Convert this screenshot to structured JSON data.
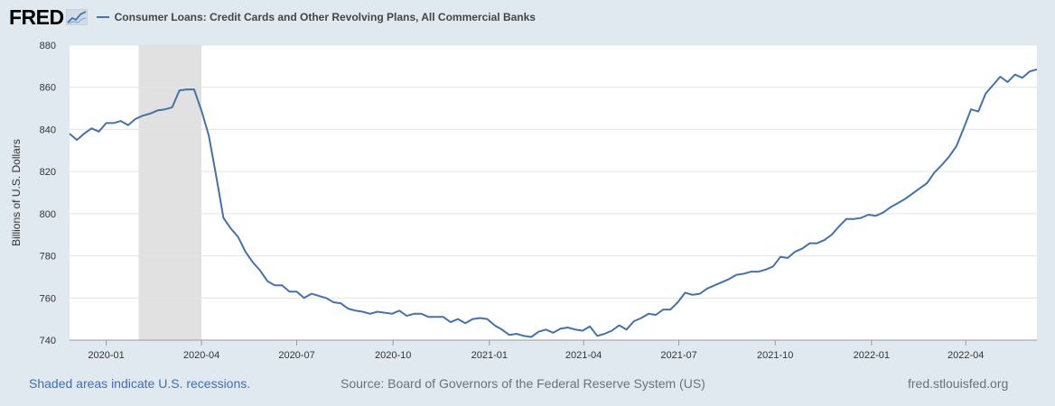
{
  "brand": {
    "logo_text": "FRED",
    "logo_icon": "fred-chart-icon"
  },
  "footer": {
    "recession_note": "Shaded areas indicate U.S. recessions.",
    "source": "Source: Board of Governors of the Federal Reserve System (US)",
    "url": "fred.stlouisfed.org"
  },
  "colors": {
    "line": "#4572a7",
    "recession": "#e1e1e1",
    "background": "#e1e9f0",
    "plot": "#ffffff",
    "grid": "#e4e4e4"
  },
  "chart_data": {
    "type": "line",
    "title": "",
    "xlabel": "",
    "ylabel": "Billions of U.S. Dollars",
    "ylim": [
      740,
      880
    ],
    "xlim": [
      "2019-11-27",
      "2022-06-08"
    ],
    "yticks": [
      740,
      760,
      780,
      800,
      820,
      840,
      860,
      880
    ],
    "xticks": [
      {
        "date": "2020-01-01",
        "label": "2020-01"
      },
      {
        "date": "2020-04-01",
        "label": "2020-04"
      },
      {
        "date": "2020-07-01",
        "label": "2020-07"
      },
      {
        "date": "2020-10-01",
        "label": "2020-10"
      },
      {
        "date": "2021-01-01",
        "label": "2021-01"
      },
      {
        "date": "2021-04-01",
        "label": "2021-04"
      },
      {
        "date": "2021-07-01",
        "label": "2021-07"
      },
      {
        "date": "2021-10-01",
        "label": "2021-10"
      },
      {
        "date": "2022-01-01",
        "label": "2022-01"
      },
      {
        "date": "2022-04-01",
        "label": "2022-04"
      }
    ],
    "grid": true,
    "legend": "top-left",
    "recessions": [
      {
        "start": "2020-02-01",
        "end": "2020-04-01"
      }
    ],
    "series": [
      {
        "name": "Consumer Loans: Credit Cards and Other Revolving Plans, All Commercial Banks",
        "x": [
          "2019-11-27",
          "2019-12-04",
          "2019-12-11",
          "2019-12-18",
          "2019-12-25",
          "2020-01-01",
          "2020-01-08",
          "2020-01-15",
          "2020-01-22",
          "2020-01-29",
          "2020-02-05",
          "2020-02-12",
          "2020-02-19",
          "2020-02-26",
          "2020-03-04",
          "2020-03-11",
          "2020-03-18",
          "2020-03-25",
          "2020-04-01",
          "2020-04-08",
          "2020-04-15",
          "2020-04-22",
          "2020-04-29",
          "2020-05-06",
          "2020-05-13",
          "2020-05-20",
          "2020-05-27",
          "2020-06-03",
          "2020-06-10",
          "2020-06-17",
          "2020-06-24",
          "2020-07-01",
          "2020-07-08",
          "2020-07-15",
          "2020-07-22",
          "2020-07-29",
          "2020-08-05",
          "2020-08-12",
          "2020-08-19",
          "2020-08-26",
          "2020-09-02",
          "2020-09-09",
          "2020-09-16",
          "2020-09-23",
          "2020-09-30",
          "2020-10-07",
          "2020-10-14",
          "2020-10-21",
          "2020-10-28",
          "2020-11-04",
          "2020-11-11",
          "2020-11-18",
          "2020-11-25",
          "2020-12-02",
          "2020-12-09",
          "2020-12-16",
          "2020-12-23",
          "2020-12-30",
          "2021-01-06",
          "2021-01-13",
          "2021-01-20",
          "2021-01-27",
          "2021-02-03",
          "2021-02-10",
          "2021-02-17",
          "2021-02-24",
          "2021-03-03",
          "2021-03-10",
          "2021-03-17",
          "2021-03-24",
          "2021-03-31",
          "2021-04-07",
          "2021-04-14",
          "2021-04-21",
          "2021-04-28",
          "2021-05-05",
          "2021-05-12",
          "2021-05-19",
          "2021-05-26",
          "2021-06-02",
          "2021-06-09",
          "2021-06-16",
          "2021-06-23",
          "2021-06-30",
          "2021-07-07",
          "2021-07-14",
          "2021-07-21",
          "2021-07-28",
          "2021-08-04",
          "2021-08-11",
          "2021-08-18",
          "2021-08-25",
          "2021-09-01",
          "2021-09-08",
          "2021-09-15",
          "2021-09-22",
          "2021-09-29",
          "2021-10-06",
          "2021-10-13",
          "2021-10-20",
          "2021-10-27",
          "2021-11-03",
          "2021-11-10",
          "2021-11-17",
          "2021-11-24",
          "2021-12-01",
          "2021-12-08",
          "2021-12-15",
          "2021-12-22",
          "2021-12-29",
          "2022-01-05",
          "2022-01-12",
          "2022-01-19",
          "2022-01-26",
          "2022-02-02",
          "2022-02-09",
          "2022-02-16",
          "2022-02-23",
          "2022-03-02",
          "2022-03-09",
          "2022-03-16",
          "2022-03-23",
          "2022-03-30",
          "2022-04-06",
          "2022-04-13",
          "2022-04-20",
          "2022-04-27",
          "2022-05-04",
          "2022-05-11",
          "2022-05-18",
          "2022-05-25",
          "2022-06-01",
          "2022-06-08"
        ],
        "values": [
          838,
          835,
          838,
          840.5,
          839,
          843,
          843,
          844,
          842,
          845,
          846.5,
          847.5,
          849,
          849.5,
          850.5,
          858.5,
          859,
          859,
          849,
          837,
          818,
          798,
          793,
          789,
          782,
          777,
          773,
          768,
          766,
          766,
          763,
          763,
          760,
          762,
          761,
          760,
          758,
          757.5,
          755,
          754,
          753.5,
          752.5,
          753.5,
          753,
          752.5,
          754,
          751.5,
          752.5,
          752.5,
          751,
          751,
          751,
          748.5,
          750,
          748,
          750,
          750.5,
          750,
          747,
          745,
          742.5,
          743,
          742,
          741.5,
          744,
          745,
          743.5,
          745.5,
          746,
          745,
          744.5,
          746.5,
          742,
          743,
          744.5,
          747,
          745,
          749,
          750.5,
          752.5,
          752,
          754.5,
          754.5,
          758,
          762.5,
          761.5,
          762,
          764.5,
          766,
          767.5,
          769,
          771,
          771.5,
          772.5,
          772.5,
          773.5,
          775,
          779.5,
          779,
          782,
          783.5,
          786,
          786,
          787.5,
          790,
          794,
          797.5,
          797.5,
          798,
          799.5,
          799,
          800.5,
          803,
          805,
          807,
          809.5,
          812,
          814.5,
          819.5,
          823,
          827,
          832,
          840.5,
          849.5,
          848.5,
          857,
          861,
          865,
          862.5,
          866,
          864.5,
          867.5,
          868.5
        ]
      }
    ]
  }
}
